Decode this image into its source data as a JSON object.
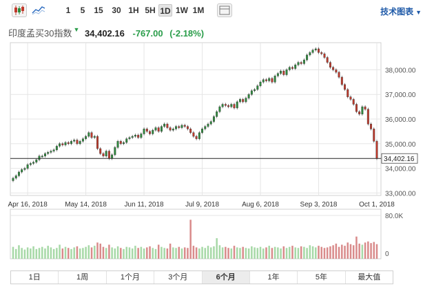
{
  "toolbar": {
    "intervals": [
      "1",
      "5",
      "15",
      "30",
      "1H",
      "5H",
      "1D",
      "1W",
      "1M"
    ],
    "active_interval": "1D",
    "tech_chart_label": "技术图表"
  },
  "quote": {
    "name": "印度孟买30指数",
    "price": "34,402.16",
    "change": "-767.00",
    "change_pct": "(-2.18%)"
  },
  "periods": [
    "1日",
    "1周",
    "1个月",
    "3个月",
    "6个月",
    "1年",
    "5年",
    "最大值"
  ],
  "active_period": "6个月",
  "colors": {
    "up": "#2e8b3d",
    "down": "#c0392b",
    "vol_up": "#a7d9a7",
    "vol_down": "#d98b8b",
    "grid": "#e5e5e5"
  },
  "chart_data": {
    "type": "candlestick",
    "xlabels": [
      "Apr 16, 2018",
      "May 14, 2018",
      "Jun 11, 2018",
      "Jul 9, 2018",
      "Aug 6, 2018",
      "Sep 3, 2018",
      "Oct 1, 2018"
    ],
    "yticks": [
      "38,000.00",
      "37,000.00",
      "36,000.00",
      "35,000.00",
      "34,000.00",
      "33,000.00"
    ],
    "ylim": [
      32900,
      39100
    ],
    "last_price_label": "34,402.16",
    "last_price": 34402.16,
    "volume_label": "80.0K",
    "volume_max": 80000,
    "close": [
      33600,
      33700,
      33850,
      33950,
      34000,
      34150,
      34200,
      34250,
      34350,
      34500,
      34500,
      34600,
      34650,
      34700,
      34750,
      34900,
      35000,
      34950,
      35050,
      35000,
      35100,
      35150,
      35000,
      35100,
      35200,
      35300,
      35450,
      35250,
      35300,
      34800,
      34600,
      34500,
      34700,
      34400,
      34550,
      34850,
      35100,
      35000,
      35050,
      35200,
      35250,
      35300,
      35350,
      35250,
      35400,
      35600,
      35500,
      35400,
      35550,
      35650,
      35500,
      35700,
      35800,
      35650,
      35550,
      35600,
      35700,
      35650,
      35750,
      35700,
      35600,
      35450,
      35300,
      35200,
      35450,
      35600,
      35700,
      35800,
      35900,
      36100,
      36300,
      36500,
      36600,
      36550,
      36500,
      36600,
      36450,
      36700,
      36800,
      36700,
      36850,
      37000,
      37150,
      37200,
      37350,
      37500,
      37600,
      37550,
      37650,
      37500,
      37750,
      37850,
      37950,
      37800,
      38000,
      38100,
      38050,
      38200,
      38300,
      38250,
      38400,
      38600,
      38700,
      38800,
      38850,
      38700,
      38650,
      38500,
      38300,
      38100,
      38000,
      37900,
      37700,
      37400,
      37200,
      36900,
      36800,
      36600,
      36300,
      36200,
      36500,
      36400,
      35800,
      35600,
      35100,
      34400
    ],
    "open": [
      33500,
      33600,
      33700,
      33850,
      33950,
      34000,
      34150,
      34200,
      34250,
      34350,
      34500,
      34500,
      34600,
      34650,
      34700,
      34750,
      34900,
      35000,
      34950,
      35050,
      35000,
      35100,
      35150,
      35000,
      35100,
      35200,
      35300,
      35450,
      35250,
      35300,
      34800,
      34600,
      34500,
      34700,
      34400,
      34550,
      34850,
      35100,
      35000,
      35050,
      35200,
      35250,
      35300,
      35350,
      35250,
      35400,
      35600,
      35500,
      35400,
      35550,
      35650,
      35500,
      35700,
      35800,
      35650,
      35550,
      35600,
      35700,
      35650,
      35750,
      35700,
      35600,
      35450,
      35300,
      35200,
      35450,
      35600,
      35700,
      35800,
      35900,
      36100,
      36300,
      36500,
      36600,
      36550,
      36500,
      36600,
      36450,
      36700,
      36800,
      36700,
      36850,
      37000,
      37150,
      37200,
      37350,
      37500,
      37600,
      37550,
      37650,
      37500,
      37750,
      37850,
      37950,
      37800,
      38000,
      38100,
      38050,
      38200,
      38300,
      38250,
      38400,
      38600,
      38700,
      38800,
      38850,
      38700,
      38650,
      38500,
      38300,
      38100,
      38000,
      37900,
      37700,
      37400,
      37200,
      36900,
      36800,
      36600,
      36300,
      36200,
      36500,
      36400,
      35800,
      35600,
      35100
    ],
    "volume": [
      22000,
      18000,
      25000,
      20000,
      17000,
      21000,
      19000,
      23000,
      18000,
      20000,
      22000,
      19000,
      24000,
      21000,
      18000,
      20000,
      26000,
      19000,
      22000,
      20000,
      18000,
      21000,
      23000,
      19000,
      20000,
      22000,
      25000,
      21000,
      24000,
      30000,
      28000,
      22000,
      20000,
      26000,
      21000,
      19000,
      23000,
      20000,
      18000,
      22000,
      21000,
      19000,
      24000,
      20000,
      22000,
      19000,
      21000,
      23000,
      20000,
      18000,
      26000,
      22000,
      20000,
      19000,
      28000,
      21000,
      20000,
      22000,
      19000,
      21000,
      20000,
      72000,
      24000,
      21000,
      19000,
      22000,
      20000,
      24000,
      21000,
      23000,
      38000,
      25000,
      21000,
      22000,
      20000,
      19000,
      24000,
      21000,
      20000,
      22000,
      20000,
      19000,
      23000,
      21000,
      20000,
      22000,
      19000,
      21000,
      24000,
      20000,
      22000,
      21000,
      19000,
      23000,
      20000,
      22000,
      24000,
      21000,
      20000,
      23000,
      22000,
      20000,
      25000,
      23000,
      21000,
      24000,
      22000,
      20000,
      21000,
      23000,
      25000,
      28000,
      22000,
      26000,
      24000,
      30000,
      27000,
      25000,
      41000,
      28000,
      26000,
      30000,
      32000,
      29000,
      31000,
      27000
    ]
  }
}
